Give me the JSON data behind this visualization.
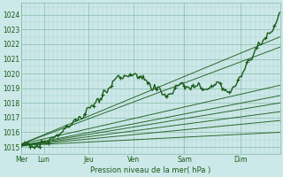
{
  "background_color": "#cce8e8",
  "grid_minor_color": "#aad4cc",
  "grid_major_color": "#88bbaa",
  "line_color": "#1a5c1a",
  "text_color": "#1a5c1a",
  "xlabel_text": "Pression niveau de la mer( hPa )",
  "x_tick_labels": [
    "Mer",
    "Lun",
    "Jeu",
    "Ven",
    "Sam",
    "Dim"
  ],
  "x_tick_positions": [
    0,
    20,
    60,
    100,
    145,
    195
  ],
  "ylim": [
    1014.5,
    1024.8
  ],
  "xlim": [
    0,
    230
  ],
  "yticks": [
    1015,
    1016,
    1017,
    1018,
    1019,
    1020,
    1021,
    1022,
    1023,
    1024
  ],
  "total_points": 230,
  "straight_line_endpoints": [
    [
      1015.1,
      1016.0
    ],
    [
      1015.1,
      1016.8
    ],
    [
      1015.1,
      1017.4
    ],
    [
      1015.1,
      1018.0
    ],
    [
      1015.1,
      1018.5
    ],
    [
      1015.2,
      1019.2
    ],
    [
      1015.2,
      1021.8
    ],
    [
      1015.2,
      1022.5
    ]
  ],
  "wiggly_waypoints_x": [
    0,
    20,
    40,
    60,
    80,
    100,
    110,
    120,
    130,
    140,
    150,
    160,
    165,
    170,
    175,
    180,
    185,
    190,
    195,
    200,
    205,
    210,
    215,
    220,
    225,
    229
  ],
  "wiggly_waypoints_y": [
    1015.1,
    1015.3,
    1016.2,
    1017.5,
    1019.2,
    1019.9,
    1019.5,
    1019.0,
    1018.8,
    1018.9,
    1019.1,
    1019.0,
    1018.9,
    1019.2,
    1019.3,
    1019.0,
    1018.8,
    1019.3,
    1019.7,
    1020.5,
    1021.2,
    1021.8,
    1022.3,
    1022.8,
    1023.2,
    1024.1
  ]
}
